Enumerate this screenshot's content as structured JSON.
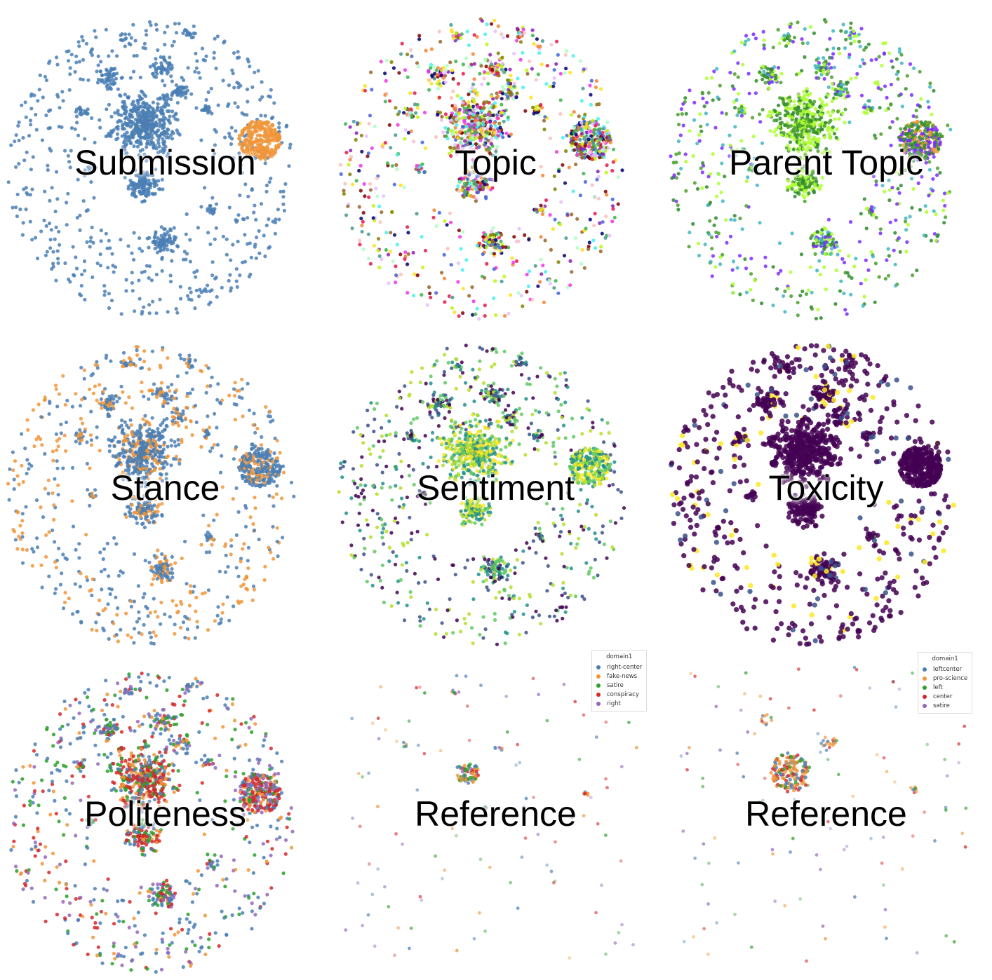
{
  "panels": [
    {
      "id": "submission",
      "title": "Submission",
      "palette": [
        "#4a7fb5",
        "#f0953a"
      ],
      "dominant": "#4a7fb5",
      "special": "#f0953a"
    },
    {
      "id": "topic",
      "title": "Topic",
      "palette": [
        "#e6194b",
        "#3cb44b",
        "#4363d8",
        "#f58231",
        "#911eb4",
        "#46f0f0",
        "#f032e6",
        "#bcf60c",
        "#9a6324",
        "#800000",
        "#aaffc3",
        "#808000",
        "#e6beff",
        "#469990",
        "#ffe119",
        "#000075",
        "#fabebe"
      ],
      "dominant": "mixed",
      "special": "mixed"
    },
    {
      "id": "parent-topic",
      "title": "Parent Topic",
      "palette": [
        "#2e8b2e",
        "#4aa02c",
        "#adff2f",
        "#7b2cff",
        "#41b6c4",
        "#f0953a",
        "#e31a1c",
        "#b0c4de"
      ],
      "dominant": "#2e8b2e",
      "special": "#2e8b2e"
    },
    {
      "id": "stance",
      "title": "Stance",
      "palette": [
        "#4a7fb5",
        "#f0953a"
      ],
      "dominant": "#4a7fb5",
      "special": "#4a7fb5"
    },
    {
      "id": "sentiment",
      "title": "Sentiment",
      "palette": [
        "#440154",
        "#3b528b",
        "#21918c",
        "#5ec962",
        "#b5de2b",
        "#fde725"
      ],
      "dominant": "#5ec962",
      "special": "#b5de2b"
    },
    {
      "id": "toxicity",
      "title": "Toxicity",
      "palette": [
        "#440154",
        "#440154",
        "#440154",
        "#440154",
        "#3b528b",
        "#fde725"
      ],
      "dominant": "#440154",
      "special": "#440154"
    },
    {
      "id": "politeness",
      "title": "Politeness",
      "palette": [
        "#4a7fb5",
        "#d62728",
        "#f0953a",
        "#2ca02c",
        "#9467bd"
      ],
      "dominant": "mixed",
      "special": "mixed"
    },
    {
      "id": "reference-1",
      "title": "Reference",
      "palette": [
        "#4a7fb5",
        "#f0953a",
        "#2ca02c",
        "#d62728",
        "#9467bd"
      ],
      "dominant": "#f0953a",
      "special": "#f0953a"
    },
    {
      "id": "reference-2",
      "title": "Reference",
      "palette": [
        "#4a7fb5",
        "#f0953a",
        "#2ca02c",
        "#d62728",
        "#9467bd"
      ],
      "dominant": "#f0953a",
      "special": "#f0953a"
    }
  ],
  "legends": [
    {
      "title": "domain1",
      "items": [
        {
          "label": "right-center",
          "color": "#4a7fb5"
        },
        {
          "label": "fake-news",
          "color": "#f0953a"
        },
        {
          "label": "satire",
          "color": "#2ca02c"
        },
        {
          "label": "conspiracy",
          "color": "#d62728"
        },
        {
          "label": "right",
          "color": "#9467bd"
        }
      ]
    },
    {
      "title": "domain1",
      "items": [
        {
          "label": "leftcenter",
          "color": "#4a7fb5"
        },
        {
          "label": "pro-science",
          "color": "#f0953a"
        },
        {
          "label": "left",
          "color": "#2ca02c"
        },
        {
          "label": "center",
          "color": "#d62728"
        },
        {
          "label": "satire",
          "color": "#9467bd"
        }
      ]
    }
  ]
}
